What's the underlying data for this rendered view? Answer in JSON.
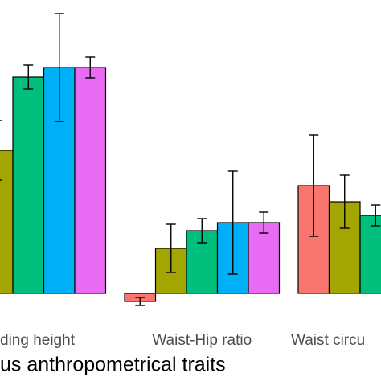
{
  "chart_data": {
    "type": "bar",
    "x_label": "us anthropometrical traits",
    "categories": [
      "ding height",
      "Waist-Hip ratio",
      "Waist circu"
    ],
    "series": [
      {
        "color": "#F8766D",
        "values": [
          null,
          -0.1,
          1.34
        ],
        "errors": [
          null,
          0.05,
          0.63
        ]
      },
      {
        "color": "#A3A500",
        "values": [
          1.78,
          0.56,
          1.14
        ],
        "errors": [
          0.37,
          0.3,
          0.33
        ]
      },
      {
        "color": "#00BF7D",
        "values": [
          2.69,
          0.78,
          0.97
        ],
        "errors": [
          0.15,
          0.15,
          0.13
        ]
      },
      {
        "color": "#00B0F6",
        "values": [
          2.81,
          0.88,
          null
        ],
        "errors": [
          0.67,
          0.64,
          null
        ]
      },
      {
        "color": "#E76BF3",
        "values": [
          2.81,
          0.88,
          null
        ],
        "errors": [
          0.13,
          0.13,
          null
        ]
      }
    ]
  }
}
